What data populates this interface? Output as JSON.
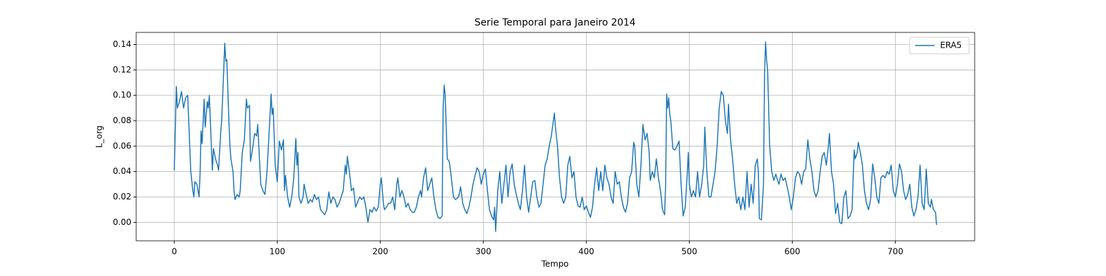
{
  "chart_data": {
    "type": "line",
    "title": "Serie Temporal para Janeiro 2014",
    "x_label": "Tempo",
    "y_label": "L_org",
    "x": [
      0,
      2,
      3,
      5,
      7,
      9,
      11,
      13,
      15,
      16,
      18,
      19,
      20,
      22,
      24,
      25,
      26,
      27,
      29,
      30,
      32,
      33,
      34,
      36,
      37,
      38,
      40,
      42,
      43,
      45,
      46,
      48,
      49,
      50,
      51,
      53,
      54,
      55,
      57,
      58,
      59,
      61,
      63,
      64,
      66,
      68,
      70,
      71,
      73,
      74,
      76,
      78,
      80,
      81,
      83,
      84,
      86,
      88,
      90,
      92,
      94,
      95,
      96,
      98,
      100,
      102,
      104,
      106,
      107,
      108,
      110,
      112,
      114,
      116,
      118,
      119,
      120,
      121,
      123,
      125,
      126,
      128,
      130,
      132,
      134,
      136,
      138,
      140,
      142,
      144,
      146,
      148,
      150,
      152,
      154,
      156,
      158,
      160,
      162,
      164,
      166,
      167,
      168,
      170,
      172,
      174,
      176,
      178,
      180,
      182,
      184,
      186,
      188,
      190,
      192,
      194,
      196,
      198,
      200,
      201,
      203,
      204,
      206,
      208,
      210,
      212,
      214,
      216,
      217,
      219,
      221,
      223,
      225,
      227,
      229,
      231,
      233,
      235,
      237,
      239,
      240,
      242,
      244,
      246,
      248,
      250,
      252,
      254,
      256,
      258,
      260,
      261,
      262,
      263,
      265,
      267,
      269,
      271,
      273,
      276,
      278,
      280,
      282,
      284,
      286,
      288,
      290,
      292,
      294,
      296,
      298,
      300,
      302,
      304,
      306,
      308,
      310,
      311,
      312,
      314,
      316,
      318,
      320,
      322,
      324,
      326,
      328,
      330,
      332,
      334,
      336,
      338,
      340,
      342,
      344,
      346,
      348,
      350,
      352,
      354,
      356,
      358,
      360,
      362,
      364,
      366,
      368,
      369,
      370,
      372,
      374,
      376,
      378,
      380,
      382,
      384,
      386,
      388,
      390,
      392,
      394,
      396,
      398,
      400,
      402,
      404,
      406,
      408,
      410,
      412,
      414,
      416,
      418,
      420,
      422,
      424,
      426,
      428,
      430,
      432,
      434,
      436,
      438,
      440,
      442,
      444,
      446,
      447,
      449,
      451,
      453,
      455,
      457,
      459,
      461,
      462,
      464,
      466,
      468,
      470,
      472,
      474,
      476,
      477,
      478,
      479,
      480,
      481,
      482,
      484,
      486,
      488,
      490,
      492,
      494,
      496,
      498,
      499,
      500,
      502,
      504,
      506,
      508,
      510,
      512,
      514,
      515,
      517,
      519,
      521,
      523,
      525,
      527,
      529,
      531,
      533,
      535,
      537,
      538,
      540,
      542,
      544,
      546,
      548,
      550,
      552,
      554,
      556,
      558,
      560,
      562,
      564,
      566,
      567,
      568,
      570,
      572,
      573,
      574,
      575,
      576,
      578,
      580,
      582,
      584,
      585,
      587,
      589,
      591,
      593,
      595,
      597,
      599,
      601,
      603,
      605,
      607,
      609,
      611,
      613,
      615,
      617,
      619,
      621,
      623,
      625,
      627,
      629,
      631,
      633,
      635,
      636,
      638,
      640,
      642,
      644,
      646,
      648,
      650,
      652,
      654,
      656,
      658,
      660,
      661,
      663,
      664,
      666,
      668,
      670,
      672,
      674,
      676,
      678,
      680,
      682,
      684,
      686,
      688,
      690,
      692,
      694,
      696,
      698,
      700,
      702,
      704,
      706,
      708,
      710,
      712,
      714,
      716,
      718,
      720,
      722,
      724,
      726,
      728,
      730,
      732,
      734,
      735,
      737,
      739,
      740
    ],
    "series": [
      {
        "name": "ERA5",
        "color": "#1f77b4",
        "values": [
          0.041,
          0.107,
          0.09,
          0.095,
          0.103,
          0.09,
          0.098,
          0.1,
          0.06,
          0.04,
          0.025,
          0.02,
          0.032,
          0.03,
          0.02,
          0.037,
          0.072,
          0.062,
          0.097,
          0.075,
          0.095,
          0.09,
          0.1,
          0.06,
          0.041,
          0.058,
          0.05,
          0.045,
          0.041,
          0.07,
          0.08,
          0.12,
          0.141,
          0.127,
          0.128,
          0.08,
          0.06,
          0.05,
          0.04,
          0.025,
          0.018,
          0.022,
          0.02,
          0.025,
          0.055,
          0.065,
          0.097,
          0.09,
          0.092,
          0.048,
          0.058,
          0.07,
          0.068,
          0.077,
          0.045,
          0.03,
          0.025,
          0.022,
          0.04,
          0.07,
          0.101,
          0.085,
          0.09,
          0.045,
          0.032,
          0.064,
          0.057,
          0.065,
          0.025,
          0.037,
          0.02,
          0.012,
          0.02,
          0.035,
          0.066,
          0.045,
          0.055,
          0.02,
          0.015,
          0.02,
          0.03,
          0.022,
          0.015,
          0.018,
          0.016,
          0.022,
          0.018,
          0.02,
          0.01,
          0.008,
          0.006,
          0.01,
          0.024,
          0.015,
          0.02,
          0.018,
          0.012,
          0.015,
          0.02,
          0.025,
          0.045,
          0.038,
          0.052,
          0.04,
          0.025,
          0.027,
          0.012,
          0.016,
          0.02,
          0.018,
          0.02,
          0.012,
          0,
          0.01,
          0.008,
          0.012,
          0.009,
          0.012,
          0.03,
          0.035,
          0.015,
          0.01,
          0.012,
          0.015,
          0.015,
          0.02,
          0.01,
          0.03,
          0.035,
          0.02,
          0.025,
          0.02,
          0.012,
          0.015,
          0.01,
          0.008,
          0.008,
          0.012,
          0.02,
          0.025,
          0.02,
          0.035,
          0.043,
          0.025,
          0.03,
          0.035,
          0.02,
          0.01,
          0.004,
          0.003,
          0.005,
          0.09,
          0.108,
          0.1,
          0.05,
          0.048,
          0.035,
          0.02,
          0.018,
          0.02,
          0.028,
          0.015,
          0.01,
          0.007,
          0.012,
          0.02,
          0.03,
          0.037,
          0.043,
          0.04,
          0.03,
          0.038,
          0.042,
          0.025,
          0.01,
          0.005,
          0.002,
          0.012,
          -0.007,
          0.025,
          0.04,
          0.015,
          0.03,
          0.045,
          0.02,
          0.04,
          0.046,
          0.03,
          0.022,
          0.015,
          0.01,
          0.025,
          0.045,
          0.02,
          0.008,
          0.02,
          0.032,
          0.033,
          0.02,
          0.012,
          0.015,
          0.03,
          0.045,
          0.05,
          0.06,
          0.068,
          0.08,
          0.086,
          0.075,
          0.06,
          0.035,
          0.02,
          0.015,
          0.02,
          0.045,
          0.052,
          0.035,
          0.04,
          0.02,
          0.013,
          0.012,
          0.02,
          0.01,
          0.013,
          0.008,
          0.004,
          0.012,
          0.03,
          0.043,
          0.025,
          0.04,
          0.025,
          0.045,
          0.035,
          0.03,
          0.02,
          0.015,
          0.04,
          0.03,
          0.032,
          0.02,
          0.012,
          0.008,
          0.015,
          0.035,
          0.04,
          0.063,
          0.06,
          0.03,
          0.02,
          0.045,
          0.077,
          0.065,
          0.07,
          0.055,
          0.033,
          0.04,
          0.035,
          0.05,
          0.035,
          0.025,
          0.01,
          0.006,
          0.03,
          0.101,
          0.09,
          0.098,
          0.085,
          0.08,
          0.058,
          0.057,
          0.06,
          0.064,
          0.03,
          0.005,
          0.012,
          0.038,
          0.055,
          0.03,
          0.02,
          0.025,
          0.02,
          0.04,
          0.02,
          0.03,
          0.045,
          0.075,
          0.04,
          0.02,
          0.02,
          0.03,
          0.04,
          0.06,
          0.09,
          0.103,
          0.1,
          0.08,
          0.07,
          0.093,
          0.065,
          0.05,
          0.03,
          0.015,
          0.02,
          0.01,
          0.02,
          0.01,
          0.04,
          0.012,
          0.03,
          0.015,
          0.045,
          0.05,
          0.04,
          0.003,
          0.002,
          0.03,
          0.115,
          0.142,
          0.128,
          0.12,
          0.06,
          0.04,
          0.033,
          0.038,
          0.035,
          0.03,
          0.038,
          0.033,
          0.035,
          0.028,
          0.02,
          0.01,
          0.02,
          0.035,
          0.04,
          0.038,
          0.03,
          0.04,
          0.042,
          0.065,
          0.05,
          0.04,
          0.025,
          0.02,
          0.025,
          0.04,
          0.052,
          0.055,
          0.045,
          0.06,
          0.07,
          0.04,
          0.03,
          0.007,
          0.015,
          0,
          -0.001,
          0.02,
          0.025,
          0.003,
          0.005,
          0.01,
          0.057,
          0.05,
          0.055,
          0.063,
          0.055,
          0.045,
          0.025,
          0.015,
          0.01,
          0.018,
          0.046,
          0.035,
          0.02,
          0.015,
          0.035,
          0.037,
          0.035,
          0.04,
          0.038,
          0.045,
          0.025,
          0.02,
          0.03,
          0.046,
          0.04,
          0.025,
          0.018,
          0.022,
          0.03,
          0.012,
          0.005,
          0.01,
          0.02,
          0.045,
          0.015,
          0.01,
          0.042,
          0.015,
          0.012,
          0.018,
          0.01,
          0.008,
          -0.002
        ]
      }
    ],
    "xlim": [
      -37,
      777
    ],
    "xticks": [
      0,
      100,
      200,
      300,
      400,
      500,
      600,
      700
    ],
    "ylim": [
      -0.0145,
      0.1495
    ],
    "yticks": [
      {
        "value": 0,
        "label": "0.00"
      },
      {
        "value": 0.02,
        "label": "0.02"
      },
      {
        "value": 0.04,
        "label": "0.04"
      },
      {
        "value": 0.06,
        "label": "0.06"
      },
      {
        "value": 0.08,
        "label": "0.08"
      },
      {
        "value": 0.1,
        "label": "0.10"
      },
      {
        "value": 0.12,
        "label": "0.12"
      },
      {
        "value": 0.14,
        "label": "0.14"
      }
    ],
    "grid": true,
    "legend": "upper right"
  }
}
